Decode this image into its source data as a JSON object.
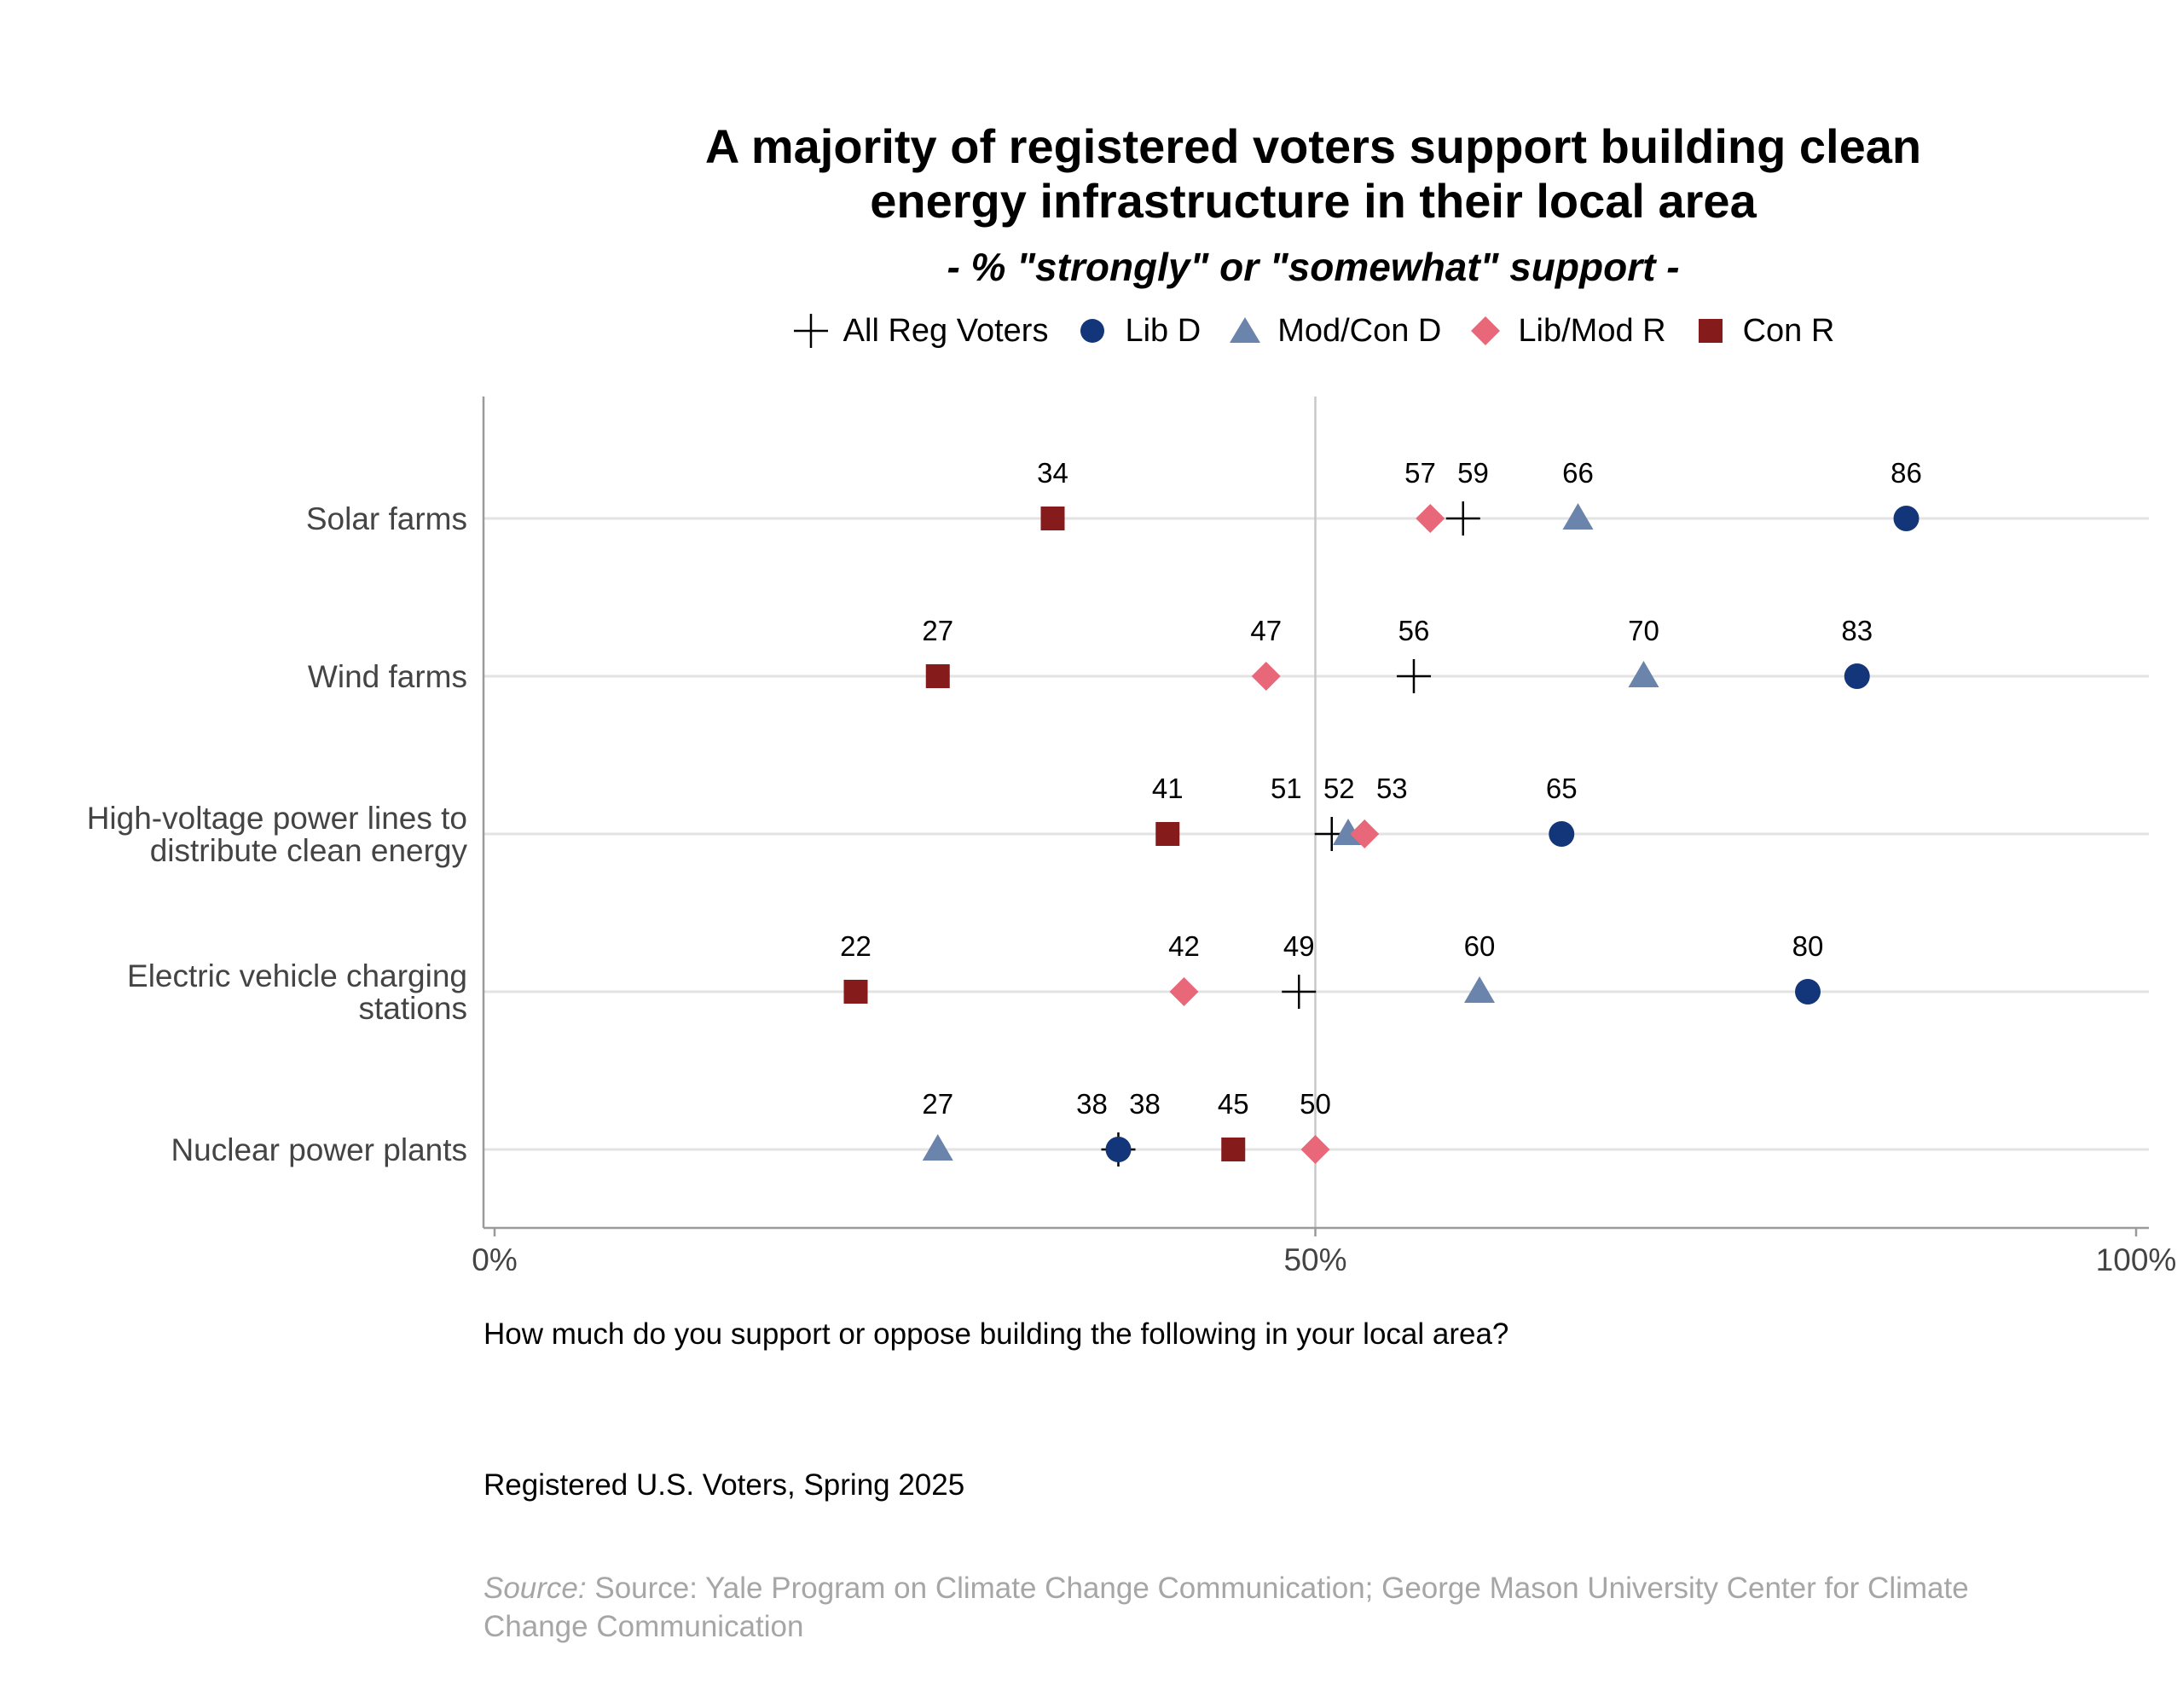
{
  "chart_data": {
    "type": "scatter",
    "title_lines": [
      "A majority of registered voters support building clean",
      "energy infrastructure in their local area"
    ],
    "subtitle": "- % \"strongly\" or \"somewhat\" support -",
    "categories": [
      "Solar farms",
      "Wind farms",
      "High-voltage power lines to distribute clean energy",
      "Electric vehicle charging stations",
      "Nuclear power plants"
    ],
    "category_label_lines": [
      [
        "Solar farms"
      ],
      [
        "Wind farms"
      ],
      [
        "High-voltage power lines to",
        "distribute clean energy"
      ],
      [
        "Electric vehicle charging",
        "stations"
      ],
      [
        "Nuclear power plants"
      ]
    ],
    "x_ticks": [
      "0%",
      "50%",
      "100%"
    ],
    "xlim": [
      0,
      100
    ],
    "grid": true,
    "legend_position": "top",
    "series": [
      {
        "name": "All Reg Voters",
        "marker": "cross",
        "color": "#000000",
        "values": [
          59,
          56,
          51,
          49,
          38
        ]
      },
      {
        "name": "Lib D",
        "marker": "circle",
        "color": "#13367a",
        "values": [
          86,
          83,
          65,
          80,
          38
        ]
      },
      {
        "name": "Mod/Con D",
        "marker": "triangle",
        "color": "#6b84ab",
        "values": [
          66,
          70,
          52,
          60,
          27
        ]
      },
      {
        "name": "Lib/Mod R",
        "marker": "diamond",
        "color": "#e8687a",
        "values": [
          57,
          47,
          53,
          42,
          50
        ]
      },
      {
        "name": "Con R",
        "marker": "square",
        "color": "#851b1b",
        "values": [
          34,
          27,
          41,
          22,
          45
        ]
      }
    ]
  },
  "notes": {
    "question": "How much do you support or oppose building the following in your local area?",
    "population": "Registered U.S. Voters, Spring 2025",
    "source_label": "Source:",
    "source_text": " Source: Yale Program on Climate Change Communication; George Mason University Center for Climate Change Communication"
  }
}
